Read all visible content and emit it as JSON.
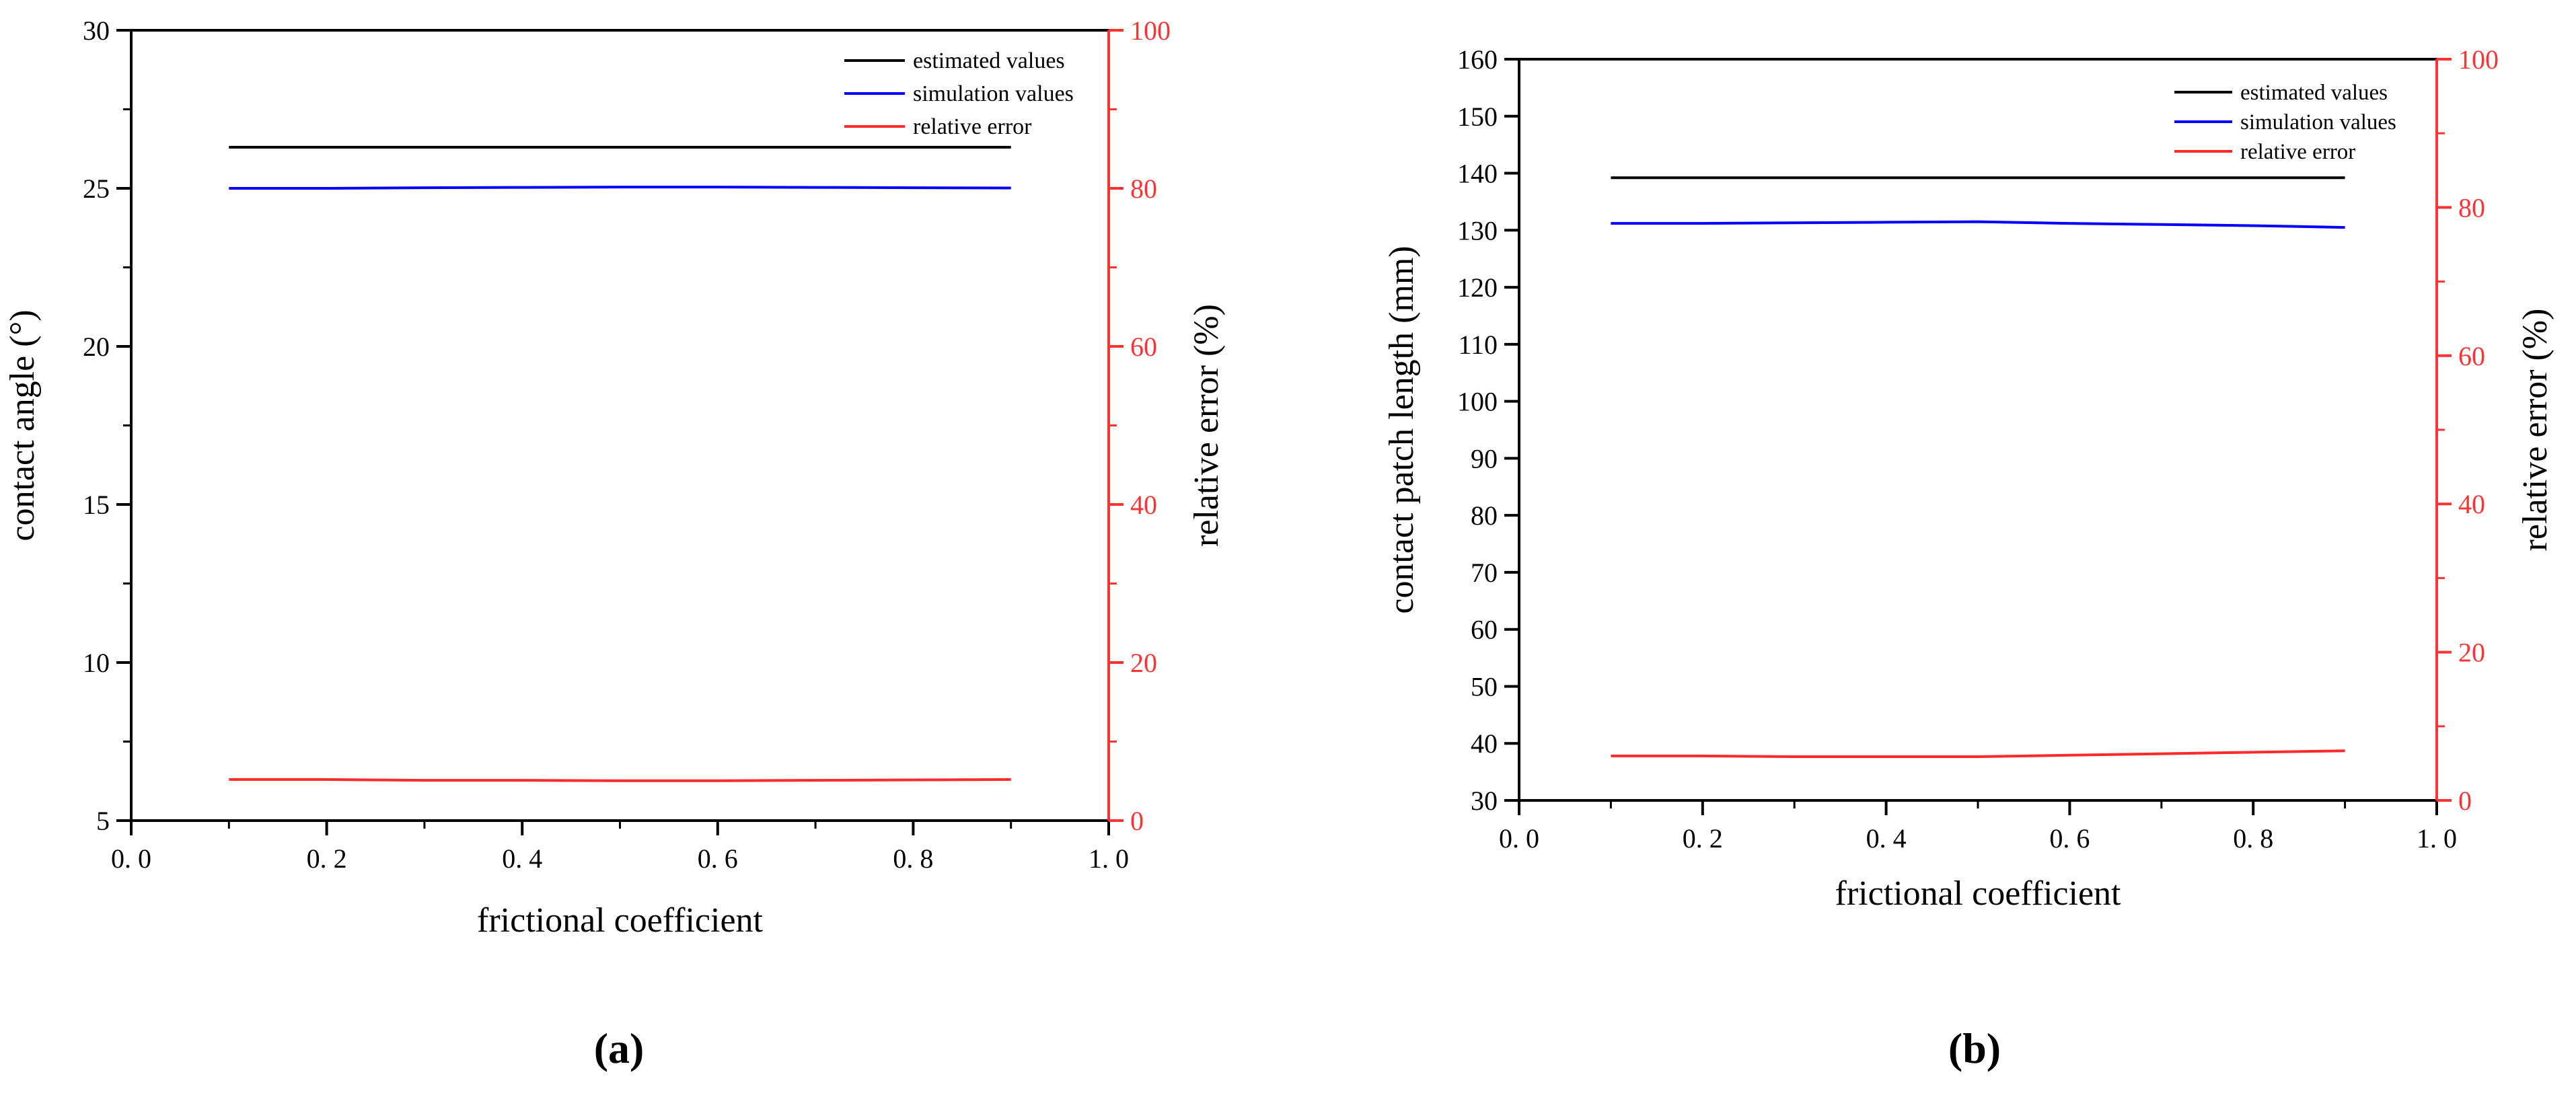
{
  "panels": [
    {
      "caption": "(a)"
    },
    {
      "caption": "(b)"
    }
  ],
  "colors": {
    "estimated": "#000000",
    "simulation": "#0000ff",
    "error": "#ff2a2a",
    "axis_left": "#000000",
    "axis_right": "#ff3333"
  },
  "chart_data": [
    {
      "type": "line",
      "title": "",
      "xlabel": "frictional coefficient",
      "ylabel": "contact angle (°)",
      "y2label": "relative error (%)",
      "xlim": [
        0.0,
        1.0
      ],
      "ylim": [
        5,
        30
      ],
      "y2lim": [
        0,
        100
      ],
      "xticks": [
        "0.0",
        "0.2",
        "0.4",
        "0.6",
        "0.8",
        "1.0"
      ],
      "yticks": [
        "5",
        "10",
        "15",
        "20",
        "25",
        "30"
      ],
      "y2ticks": [
        "0",
        "20",
        "40",
        "60",
        "80",
        "100"
      ],
      "legend_position": "top-right",
      "grid": false,
      "x": [
        0.1,
        0.2,
        0.3,
        0.4,
        0.5,
        0.6,
        0.7,
        0.8,
        0.9
      ],
      "series": [
        {
          "name": "estimated values",
          "axis": "left",
          "values": [
            26.3,
            26.3,
            26.3,
            26.3,
            26.3,
            26.3,
            26.3,
            26.3,
            26.3
          ]
        },
        {
          "name": "simulation values",
          "axis": "left",
          "values": [
            25.0,
            25.0,
            25.02,
            25.03,
            25.04,
            25.04,
            25.03,
            25.02,
            25.01
          ]
        },
        {
          "name": "relative error",
          "axis": "right",
          "values": [
            5.2,
            5.2,
            5.1,
            5.1,
            5.05,
            5.05,
            5.1,
            5.15,
            5.2
          ]
        }
      ]
    },
    {
      "type": "line",
      "title": "",
      "xlabel": "frictional coefficient",
      "ylabel": "contact patch length (mm)",
      "y2label": "relative error (%)",
      "xlim": [
        0.0,
        1.0
      ],
      "ylim": [
        30,
        160
      ],
      "y2lim": [
        0,
        100
      ],
      "xticks": [
        "0.0",
        "0.2",
        "0.4",
        "0.6",
        "0.8",
        "1.0"
      ],
      "yticks": [
        "30",
        "40",
        "50",
        "60",
        "70",
        "80",
        "90",
        "100",
        "110",
        "120",
        "130",
        "140",
        "150",
        "160"
      ],
      "y2ticks": [
        "0",
        "20",
        "40",
        "60",
        "80",
        "100"
      ],
      "legend_position": "top-right",
      "grid": false,
      "x": [
        0.1,
        0.2,
        0.3,
        0.4,
        0.5,
        0.6,
        0.7,
        0.8,
        0.9
      ],
      "series": [
        {
          "name": "estimated values",
          "axis": "left",
          "values": [
            139.2,
            139.2,
            139.2,
            139.2,
            139.2,
            139.2,
            139.2,
            139.2,
            139.2
          ]
        },
        {
          "name": "simulation values",
          "axis": "left",
          "values": [
            131.2,
            131.2,
            131.3,
            131.4,
            131.5,
            131.2,
            131.0,
            130.8,
            130.5
          ]
        },
        {
          "name": "relative error",
          "axis": "right",
          "values": [
            6.0,
            6.0,
            5.9,
            5.9,
            5.9,
            6.1,
            6.3,
            6.5,
            6.7
          ]
        }
      ]
    }
  ]
}
